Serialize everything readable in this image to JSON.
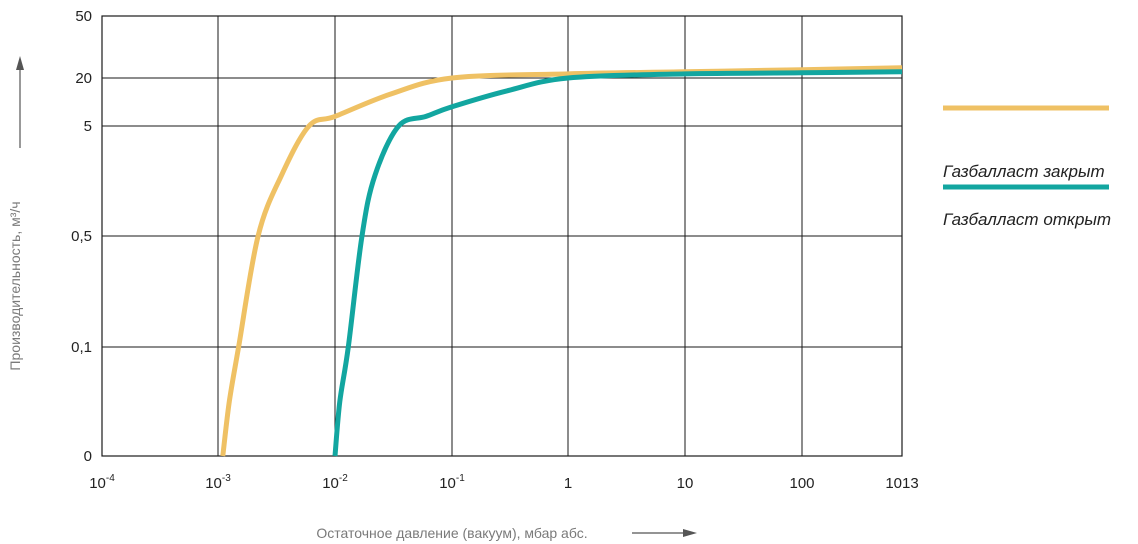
{
  "chart_data": {
    "type": "line",
    "xlabel": "Остаточное давление (вакуум), мбар абс.",
    "ylabel": "Производительность, м³/ч",
    "x_scale": "log",
    "x_ticks": [
      {
        "base": "10",
        "exp": "-4"
      },
      {
        "base": "10",
        "exp": "-3"
      },
      {
        "base": "10",
        "exp": "-2"
      },
      {
        "base": "10",
        "exp": "-1"
      },
      {
        "base": "1",
        "exp": ""
      },
      {
        "base": "10",
        "exp": ""
      },
      {
        "base": "100",
        "exp": ""
      },
      {
        "base": "1013",
        "exp": ""
      }
    ],
    "y_ticks": [
      "0",
      "0,1",
      "0,5",
      "5",
      "20",
      "50"
    ],
    "grid": true,
    "legend_position": "right",
    "series": [
      {
        "name": "Газбалласт закрыт",
        "color": "#EFC164",
        "points": [
          {
            "x": 0.0011,
            "y": "0"
          },
          {
            "x": 0.00125,
            "y": "0,05"
          },
          {
            "x": 0.0015,
            "y": "0,1"
          },
          {
            "x": 0.0022,
            "y": "0,5"
          },
          {
            "x": 0.0035,
            "y": "3"
          },
          {
            "x": 0.006,
            "y": "5"
          },
          {
            "x": 0.01,
            "y": "8"
          },
          {
            "x": 0.03,
            "y": "15"
          },
          {
            "x": 0.1,
            "y": "20"
          },
          {
            "x": 1,
            "y": "22"
          },
          {
            "x": 10,
            "y": "23"
          },
          {
            "x": 100,
            "y": "24"
          },
          {
            "x": 1013,
            "y": "25"
          }
        ]
      },
      {
        "name": "Газбалласт открыт",
        "color": "#12A6A0",
        "points": [
          {
            "x": 0.01,
            "y": "0"
          },
          {
            "x": 0.011,
            "y": "0,05"
          },
          {
            "x": 0.013,
            "y": "0,1"
          },
          {
            "x": 0.017,
            "y": "0,5"
          },
          {
            "x": 0.022,
            "y": "3"
          },
          {
            "x": 0.035,
            "y": "5"
          },
          {
            "x": 0.06,
            "y": "8"
          },
          {
            "x": 0.1,
            "y": "11"
          },
          {
            "x": 0.3,
            "y": "16"
          },
          {
            "x": 1,
            "y": "20"
          },
          {
            "x": 10,
            "y": "22"
          },
          {
            "x": 100,
            "y": "22,5"
          },
          {
            "x": 1013,
            "y": "23"
          }
        ]
      }
    ]
  }
}
